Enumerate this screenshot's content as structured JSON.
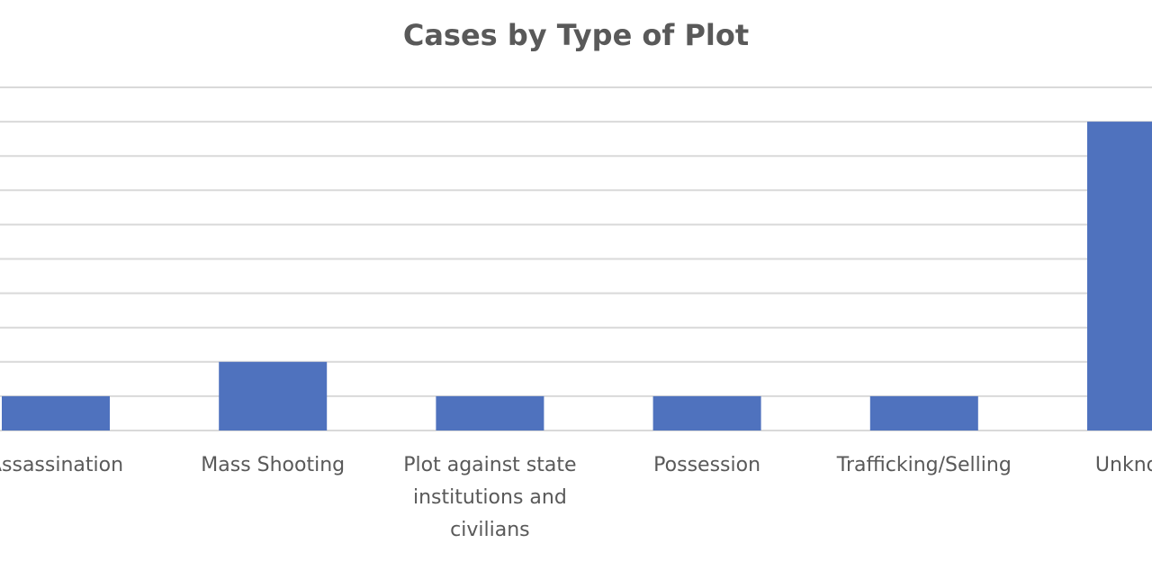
{
  "chart_data": {
    "type": "bar",
    "title": "Cases by Type of Plot",
    "xlabel": "",
    "ylabel": "",
    "categories": [
      [
        "Assassination"
      ],
      [
        "Mass Shooting"
      ],
      [
        "Plot against state",
        "institutions and",
        "civilians"
      ],
      [
        "Possession"
      ],
      [
        "Trafficking/Selling"
      ],
      [
        "Unknown"
      ]
    ],
    "values": [
      1,
      2,
      1,
      1,
      1,
      9
    ],
    "ylim": [
      0,
      10
    ],
    "grid": true,
    "bar_color": "#4F72BE",
    "grid_color": "#D9D9D9",
    "text_color": "#595959"
  }
}
